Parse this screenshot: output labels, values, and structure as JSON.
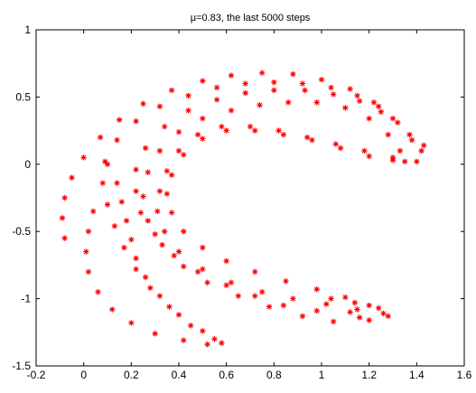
{
  "chart_data": {
    "type": "scatter",
    "title": "μ=0.83, the last 5000 steps",
    "xlabel": "",
    "ylabel": "",
    "xlim": [
      -0.2,
      1.6
    ],
    "ylim": [
      -1.5,
      1
    ],
    "x_ticks": [
      -0.2,
      0,
      0.2,
      0.4,
      0.6,
      0.8,
      1,
      1.2,
      1.4,
      1.6
    ],
    "x_tick_labels": [
      "-0.2",
      "0",
      "0.2",
      "0.4",
      "0.6",
      "0.8",
      "1",
      "1.2",
      "1.4",
      "1.6"
    ],
    "y_ticks": [
      -1.5,
      -1,
      -0.5,
      0,
      0.5,
      1
    ],
    "y_tick_labels": [
      "-1.5",
      "-1",
      "-0.5",
      "0",
      "0.5",
      "1"
    ],
    "grid": false,
    "marker": "*",
    "color": "#ff0000",
    "series": [
      {
        "values": [
          [
            -0.08,
            -0.55
          ],
          [
            -0.09,
            -0.4
          ],
          [
            -0.08,
            -0.25
          ],
          [
            -0.05,
            -0.1
          ],
          [
            0.0,
            0.05
          ],
          [
            0.07,
            0.2
          ],
          [
            0.15,
            0.33
          ],
          [
            0.25,
            0.45
          ],
          [
            0.37,
            0.55
          ],
          [
            0.5,
            0.62
          ],
          [
            0.62,
            0.66
          ],
          [
            0.75,
            0.68
          ],
          [
            0.88,
            0.67
          ],
          [
            1.0,
            0.63
          ],
          [
            1.12,
            0.56
          ],
          [
            1.22,
            0.46
          ],
          [
            1.3,
            0.34
          ],
          [
            1.37,
            0.22
          ],
          [
            1.42,
            0.1
          ],
          [
            1.4,
            0.02
          ],
          [
            1.3,
            0.05
          ],
          [
            1.18,
            0.1
          ],
          [
            1.06,
            0.15
          ],
          [
            0.94,
            0.2
          ],
          [
            0.82,
            0.25
          ],
          [
            0.7,
            0.28
          ],
          [
            0.58,
            0.28
          ],
          [
            0.48,
            0.22
          ],
          [
            0.4,
            0.1
          ],
          [
            0.35,
            -0.05
          ],
          [
            0.32,
            -0.2
          ],
          [
            0.31,
            -0.35
          ],
          [
            0.34,
            -0.5
          ],
          [
            0.4,
            -0.65
          ],
          [
            0.5,
            -0.78
          ],
          [
            0.62,
            -0.88
          ],
          [
            0.75,
            -0.95
          ],
          [
            0.88,
            -1.0
          ],
          [
            1.02,
            -1.04
          ],
          [
            1.15,
            -1.08
          ],
          [
            1.26,
            -1.11
          ],
          [
            1.2,
            -1.16
          ],
          [
            1.05,
            -1.17
          ],
          [
            0.92,
            -1.13
          ],
          [
            0.78,
            -1.06
          ],
          [
            0.65,
            -0.98
          ],
          [
            0.52,
            -0.88
          ],
          [
            0.42,
            -0.76
          ],
          [
            0.33,
            -0.6
          ],
          [
            0.27,
            -0.42
          ],
          [
            0.25,
            -0.24
          ],
          [
            0.27,
            -0.06
          ],
          [
            0.32,
            0.1
          ],
          [
            0.4,
            0.24
          ],
          [
            0.5,
            0.34
          ],
          [
            0.62,
            0.4
          ],
          [
            0.74,
            0.44
          ],
          [
            0.86,
            0.46
          ],
          [
            0.98,
            0.46
          ],
          [
            1.1,
            0.42
          ],
          [
            1.2,
            0.34
          ],
          [
            1.28,
            0.22
          ],
          [
            1.33,
            0.1
          ],
          [
            1.3,
            0.03
          ],
          [
            1.2,
            0.06
          ],
          [
            1.08,
            0.12
          ],
          [
            0.96,
            0.18
          ],
          [
            0.84,
            0.22
          ],
          [
            0.72,
            0.25
          ],
          [
            0.6,
            0.25
          ],
          [
            0.5,
            0.19
          ],
          [
            0.42,
            0.07
          ],
          [
            0.37,
            -0.08
          ],
          [
            0.35,
            -0.22
          ],
          [
            0.37,
            -0.36
          ],
          [
            0.42,
            -0.5
          ],
          [
            0.5,
            -0.62
          ],
          [
            0.6,
            -0.72
          ],
          [
            0.72,
            -0.8
          ],
          [
            0.85,
            -0.87
          ],
          [
            0.98,
            -0.93
          ],
          [
            1.1,
            -0.99
          ],
          [
            1.2,
            -1.05
          ],
          [
            1.12,
            -1.1
          ],
          [
            0.98,
            -1.09
          ],
          [
            0.84,
            -1.05
          ],
          [
            0.72,
            -0.98
          ],
          [
            0.6,
            -0.9
          ],
          [
            0.48,
            -0.8
          ],
          [
            0.38,
            -0.68
          ],
          [
            0.3,
            -0.52
          ],
          [
            0.24,
            -0.36
          ],
          [
            0.22,
            -0.2
          ],
          [
            0.22,
            -0.04
          ],
          [
            0.26,
            0.12
          ],
          [
            0.34,
            0.28
          ],
          [
            0.44,
            0.4
          ],
          [
            0.56,
            0.48
          ],
          [
            0.68,
            0.53
          ],
          [
            0.8,
            0.55
          ],
          [
            0.93,
            0.55
          ],
          [
            1.05,
            0.52
          ],
          [
            1.16,
            0.47
          ],
          [
            1.25,
            0.39
          ],
          [
            0.1,
            0.0
          ],
          [
            0.14,
            -0.14
          ],
          [
            0.16,
            -0.28
          ],
          [
            0.18,
            -0.42
          ],
          [
            0.2,
            -0.56
          ],
          [
            0.22,
            -0.7
          ],
          [
            0.26,
            -0.84
          ],
          [
            0.32,
            -0.98
          ],
          [
            0.4,
            -1.12
          ],
          [
            0.5,
            -1.24
          ],
          [
            0.58,
            -1.33
          ],
          [
            0.55,
            -1.3
          ],
          [
            0.45,
            -1.2
          ],
          [
            0.36,
            -1.06
          ],
          [
            0.28,
            -0.92
          ],
          [
            0.22,
            -0.78
          ],
          [
            0.17,
            -0.62
          ],
          [
            0.13,
            -0.46
          ],
          [
            0.1,
            -0.3
          ],
          [
            0.08,
            -0.14
          ],
          [
            0.09,
            0.02
          ],
          [
            0.14,
            0.18
          ],
          [
            0.22,
            0.32
          ],
          [
            0.32,
            0.43
          ],
          [
            0.44,
            0.51
          ],
          [
            0.56,
            0.57
          ],
          [
            0.68,
            0.6
          ],
          [
            0.8,
            0.61
          ],
          [
            0.92,
            0.6
          ],
          [
            1.04,
            0.57
          ],
          [
            1.15,
            0.51
          ],
          [
            1.24,
            0.43
          ],
          [
            1.32,
            0.31
          ],
          [
            1.38,
            0.18
          ],
          [
            1.43,
            0.14
          ],
          [
            1.35,
            0.02
          ],
          [
            0.04,
            -0.35
          ],
          [
            0.02,
            -0.5
          ],
          [
            0.01,
            -0.65
          ],
          [
            0.02,
            -0.8
          ],
          [
            0.06,
            -0.95
          ],
          [
            0.12,
            -1.08
          ],
          [
            0.2,
            -1.18
          ],
          [
            0.3,
            -1.26
          ],
          [
            0.42,
            -1.31
          ],
          [
            0.52,
            -1.34
          ],
          [
            1.04,
            -1.0
          ],
          [
            1.14,
            -1.03
          ],
          [
            1.24,
            -1.07
          ],
          [
            1.28,
            -1.13
          ],
          [
            1.16,
            -1.14
          ]
        ]
      }
    ]
  }
}
